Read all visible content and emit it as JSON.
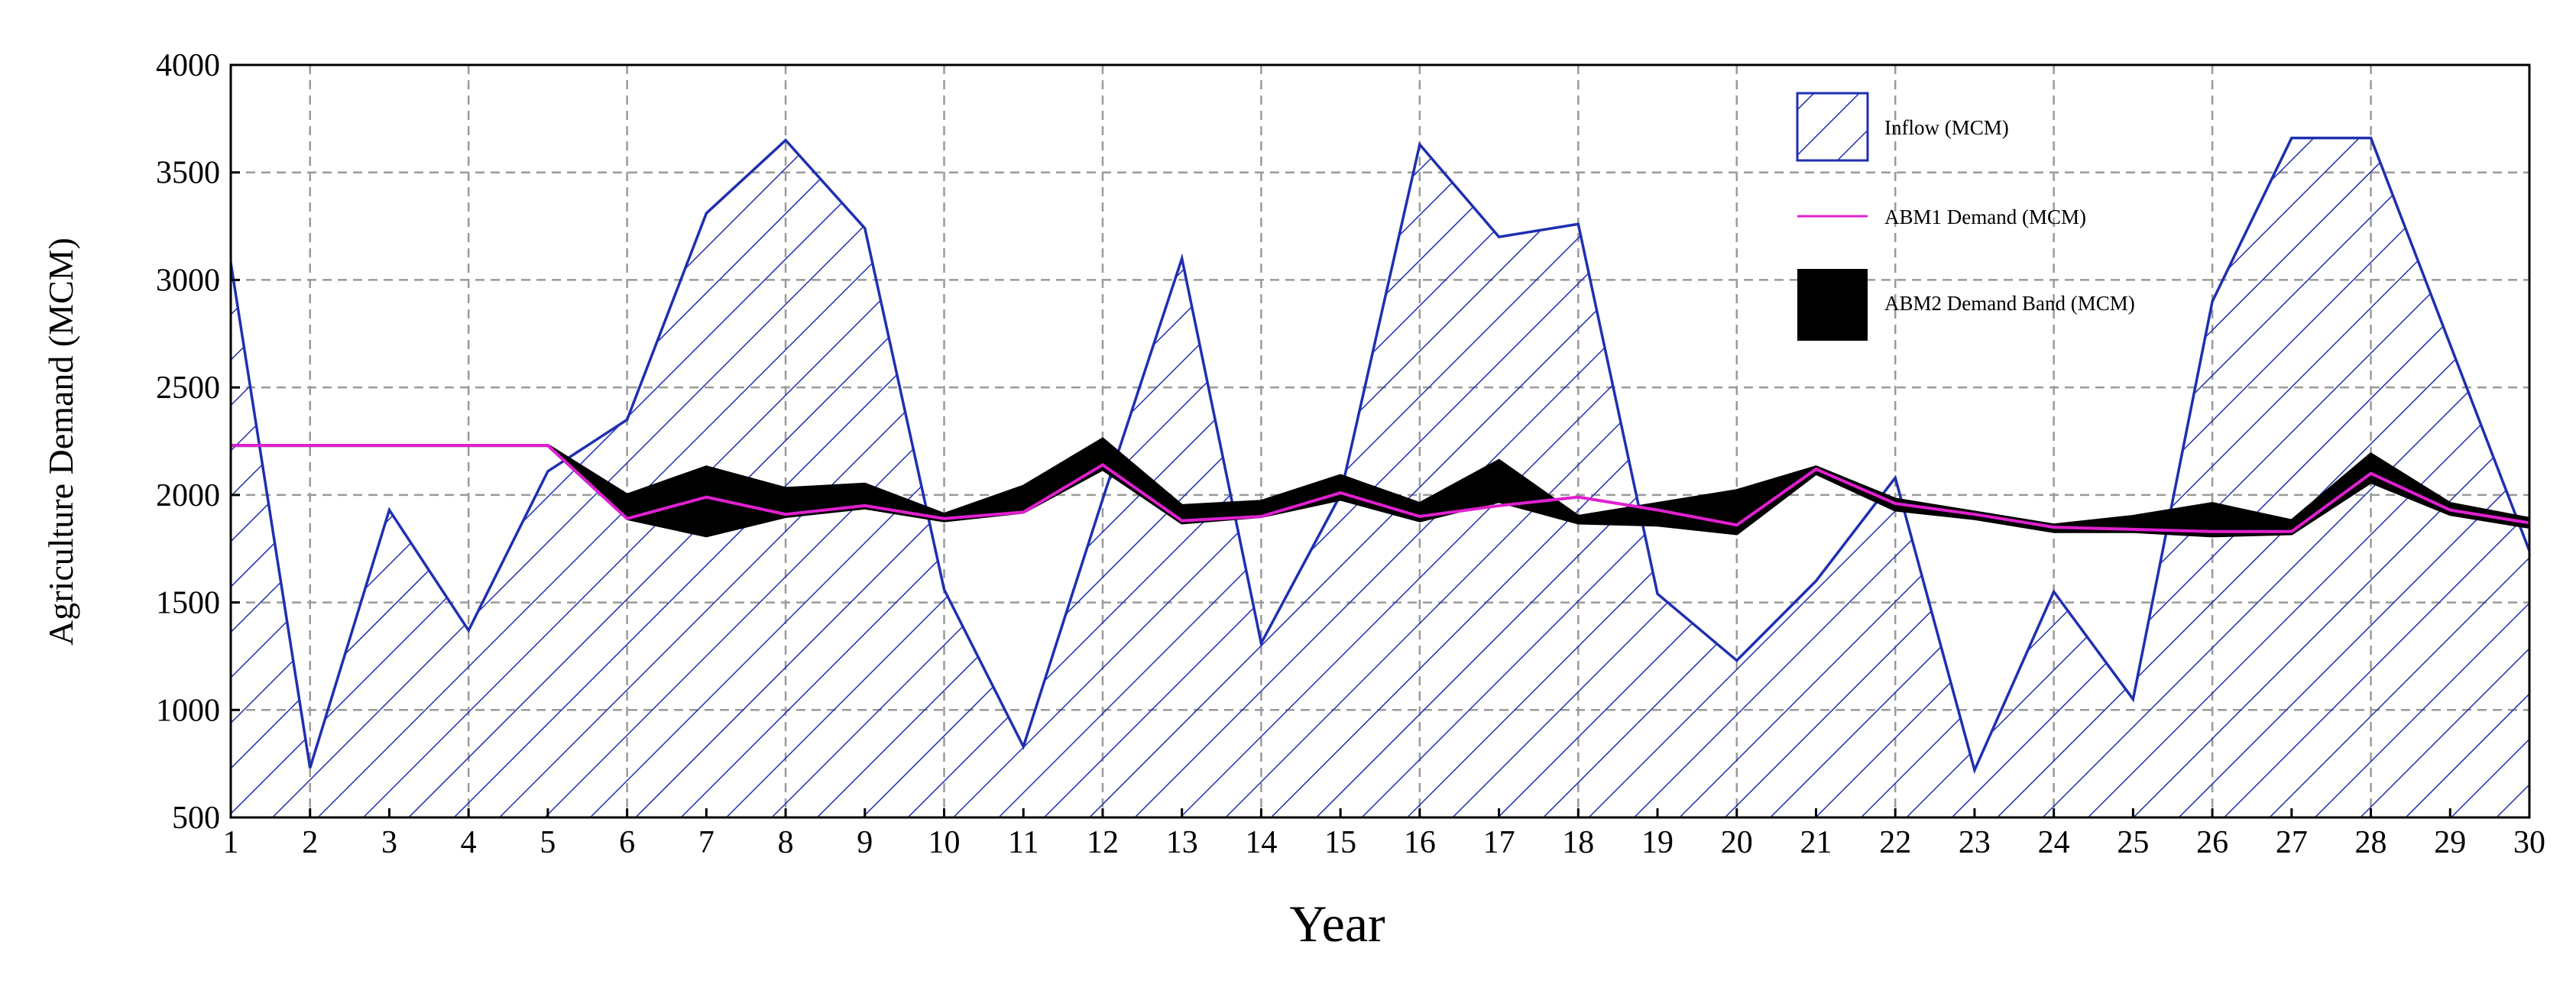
{
  "chart_data": {
    "type": "area",
    "xlabel": "Year",
    "ylabel": "Agriculture Demand (MCM)",
    "x": [
      1,
      2,
      3,
      4,
      5,
      6,
      7,
      8,
      9,
      10,
      11,
      12,
      13,
      14,
      15,
      16,
      17,
      18,
      19,
      20,
      21,
      22,
      23,
      24,
      25,
      26,
      27,
      28,
      29,
      30
    ],
    "xlim": [
      1,
      30
    ],
    "ylim": [
      500,
      4000
    ],
    "yticks": [
      500,
      1000,
      1500,
      2000,
      2500,
      3000,
      3500,
      4000
    ],
    "grid": true,
    "legend_position": "top-right",
    "series": [
      {
        "name": "Inflow (MCM)",
        "style": "hatched-area",
        "color": "#1f2fb0",
        "values": [
          3080,
          730,
          1930,
          1370,
          2110,
          2350,
          3310,
          3650,
          3240,
          1560,
          830,
          1980,
          3100,
          1310,
          2000,
          3630,
          3200,
          3260,
          1540,
          1230,
          1600,
          2080,
          720,
          1550,
          1050,
          2900,
          3660,
          3660,
          2700,
          1740
        ]
      },
      {
        "name": "ABM1 Demand (MCM)",
        "style": "line",
        "color": "#e020d0",
        "values": [
          2230,
          2230,
          2230,
          2230,
          2230,
          1890,
          1990,
          1910,
          1950,
          1890,
          1920,
          2140,
          1880,
          1900,
          2010,
          1900,
          1950,
          1990,
          1930,
          1860,
          2120,
          1960,
          1910,
          1850,
          1840,
          1830,
          1830,
          2100,
          1930,
          1870
        ]
      },
      {
        "name": "ABM2 Demand Band (MCM)",
        "style": "band",
        "color": "#000000",
        "upper": [
          2230,
          2230,
          2230,
          2230,
          2230,
          2000,
          2130,
          2030,
          2050,
          1910,
          2040,
          2260,
          1950,
          1970,
          2090,
          1960,
          2160,
          1900,
          1960,
          2020,
          2130,
          1980,
          1920,
          1860,
          1900,
          1960,
          1880,
          2190,
          1960,
          1890
        ],
        "lower": [
          2230,
          2230,
          2230,
          2230,
          2230,
          1890,
          1810,
          1900,
          1940,
          1880,
          1920,
          2120,
          1870,
          1900,
          1980,
          1880,
          1970,
          1870,
          1860,
          1820,
          2100,
          1930,
          1890,
          1830,
          1830,
          1810,
          1820,
          2060,
          1910,
          1850
        ]
      }
    ]
  }
}
